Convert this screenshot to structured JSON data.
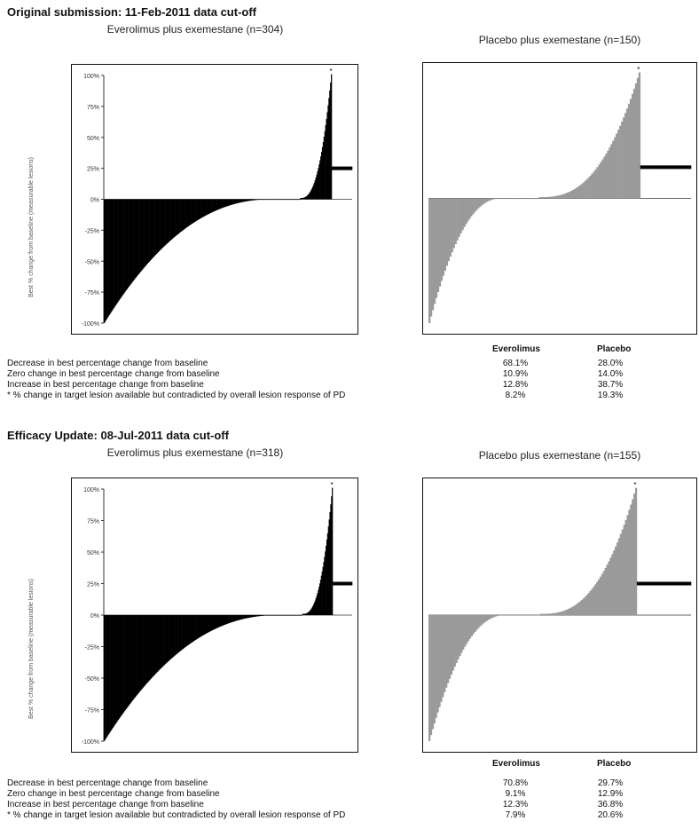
{
  "sections": [
    {
      "title": "Original submission: 11-Feb-2011 data cut-off",
      "ylabel": "Best % change from baseline (measurable lesions)",
      "stats_headers": [
        "Everolimus",
        "Placebo"
      ],
      "stats": [
        {
          "label": "Decrease in best percentage change from baseline",
          "everolimus": "68.1%",
          "placebo": "28.0%"
        },
        {
          "label": "Zero change in best percentage change from baseline",
          "everolimus": "10.9%",
          "placebo": "14.0%"
        },
        {
          "label": "Increase in best percentage change from baseline",
          "everolimus": "12.8%",
          "placebo": "38.7%"
        },
        {
          "label": "* % change in target lesion available but contradicted by overall lesion response of PD",
          "everolimus": "8.2%",
          "placebo": "19.3%"
        }
      ]
    },
    {
      "title": "Efficacy Update: 08-Jul-2011 data cut-off",
      "ylabel": "Best % change from baseline (measurable lesions)",
      "stats_headers": [
        "Everolimus",
        "Placebo"
      ],
      "stats": [
        {
          "label": "Decrease in best percentage change from baseline",
          "everolimus": "70.8%",
          "placebo": "29.7%"
        },
        {
          "label": "Zero change in best percentage change from baseline",
          "everolimus": "9.1%",
          "placebo": "12.9%"
        },
        {
          "label": "Increase in best percentage change from baseline",
          "everolimus": "12.3%",
          "placebo": "36.8%"
        },
        {
          "label": "* % change in target lesion available but contradicted by overall lesion response of PD",
          "everolimus": "7.9%",
          "placebo": "20.6%"
        }
      ]
    }
  ],
  "chart_data": [
    {
      "type": "bar",
      "title": "Everolimus plus exemestane (n=304)",
      "n": 304,
      "color": "#000000",
      "ylim": [
        -100,
        100
      ],
      "yticks": [
        "100%",
        "75%",
        "50%",
        "25%",
        "0%",
        "-25%",
        "-50%",
        "-75%",
        "-100%"
      ],
      "decrease_pct": 68.1,
      "zero_pct": 10.9,
      "increase_pct": 12.8,
      "pd_pct": 8.2,
      "min": -100,
      "max": 100,
      "pd_marker_value": 25,
      "show_ticks": true
    },
    {
      "type": "bar",
      "title": "Placebo plus exemestane (n=150)",
      "n": 150,
      "color": "#9a9a9a",
      "ylim": [
        -100,
        100
      ],
      "yticks": [],
      "decrease_pct": 28.0,
      "zero_pct": 14.0,
      "increase_pct": 38.7,
      "pd_pct": 19.3,
      "min": -100,
      "max": 100,
      "pd_marker_value": 25,
      "show_ticks": false
    },
    {
      "type": "bar",
      "title": "Everolimus plus exemestane (n=318)",
      "n": 318,
      "color": "#000000",
      "ylim": [
        -100,
        100
      ],
      "yticks": [
        "100%",
        "75%",
        "50%",
        "25%",
        "0%",
        "-25%",
        "-50%",
        "-75%",
        "-100%"
      ],
      "decrease_pct": 70.8,
      "zero_pct": 9.1,
      "increase_pct": 12.3,
      "pd_pct": 7.9,
      "min": -100,
      "max": 100,
      "pd_marker_value": 25,
      "show_ticks": true
    },
    {
      "type": "bar",
      "title": "Placebo plus exemestane (n=155)",
      "n": 155,
      "color": "#9a9a9a",
      "ylim": [
        -100,
        100
      ],
      "yticks": [],
      "decrease_pct": 29.7,
      "zero_pct": 12.9,
      "increase_pct": 36.8,
      "pd_pct": 20.6,
      "min": -100,
      "max": 100,
      "pd_marker_value": 25,
      "show_ticks": false
    }
  ]
}
